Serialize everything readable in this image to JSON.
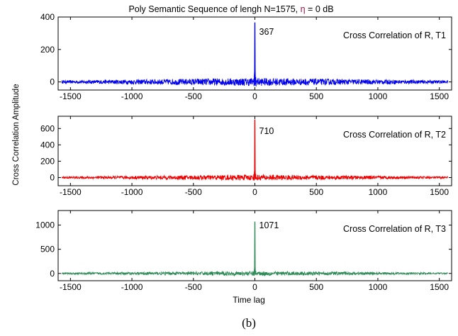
{
  "figure": {
    "title_prefix": "Poly Semantic Sequence of lengh N=1575, ",
    "title_symbol": "η",
    "title_suffix": " =  0 dB",
    "ylabel": "Cross Correlation Amplitude",
    "xlabel": "Time lag",
    "caption": "(b)"
  },
  "colors": {
    "symbol": "#8b1a4a",
    "series_1": "#0000ee",
    "series_2": "#ee0000",
    "series_3": "#2e8b57"
  },
  "chart_data": [
    {
      "type": "line",
      "series": [
        {
          "name": "Cross Correlation of R, T1",
          "noise_amplitude": 25,
          "peak_x": 0,
          "peak_y": 367
        }
      ],
      "annotation": "367",
      "legend_text": "Cross Correlation of R, T1",
      "xlim": [
        -1600,
        1600
      ],
      "ylim": [
        -50,
        400
      ],
      "x_ticks": [
        -1500,
        -1000,
        -500,
        0,
        500,
        1000,
        1500
      ],
      "x_tick_labels": [
        "-1500",
        "-1000",
        "-500",
        "0",
        "500",
        "1000",
        "1500"
      ],
      "y_ticks": [
        0,
        200,
        400
      ],
      "y_tick_labels": [
        "0",
        "200",
        "400"
      ],
      "legend_position": "top-right",
      "grid": false
    },
    {
      "type": "line",
      "series": [
        {
          "name": "Cross Correlation of R, T2",
          "noise_amplitude": 35,
          "peak_x": 0,
          "peak_y": 710
        }
      ],
      "annotation": "710",
      "legend_text": "Cross Correlation of R, T2",
      "xlim": [
        -1600,
        1600
      ],
      "ylim": [
        -100,
        750
      ],
      "x_ticks": [
        -1500,
        -1000,
        -500,
        0,
        500,
        1000,
        1500
      ],
      "x_tick_labels": [
        "-1500",
        "-1000",
        "-500",
        "0",
        "500",
        "1000",
        "1500"
      ],
      "y_ticks": [
        0,
        200,
        400,
        600
      ],
      "y_tick_labels": [
        "0",
        "200",
        "400",
        "600"
      ],
      "legend_position": "top-right",
      "grid": false
    },
    {
      "type": "line",
      "series": [
        {
          "name": "Cross Correlation of R, T3",
          "noise_amplitude": 45,
          "peak_x": 0,
          "peak_y": 1071
        }
      ],
      "annotation": "1071",
      "legend_text": "Cross Correlation of R, T3",
      "xlim": [
        -1600,
        1600
      ],
      "ylim": [
        -150,
        1300
      ],
      "x_ticks": [
        -1500,
        -1000,
        -500,
        0,
        500,
        1000,
        1500
      ],
      "x_tick_labels": [
        "-1500",
        "-1000",
        "-500",
        "0",
        "500",
        "1000",
        "1500"
      ],
      "y_ticks": [
        0,
        500,
        1000
      ],
      "y_tick_labels": [
        "0",
        "500",
        "1000"
      ],
      "legend_position": "top-right",
      "grid": false
    }
  ]
}
